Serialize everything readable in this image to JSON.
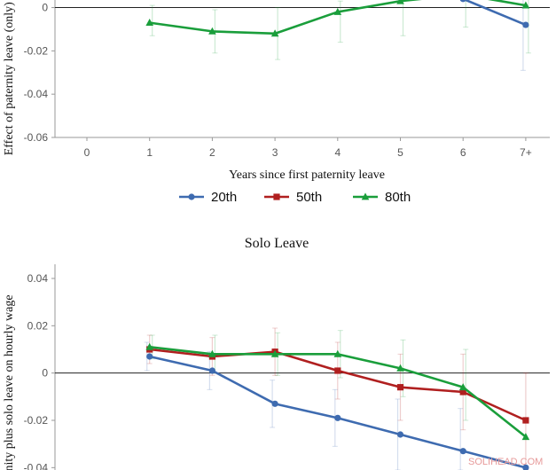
{
  "watermark": "SOLIHEAD.COM",
  "legend": [
    {
      "label": "20th",
      "color": "#3e6bb0",
      "marker": "circle"
    },
    {
      "label": "50th",
      "color": "#b01f1f",
      "marker": "square"
    },
    {
      "label": "80th",
      "color": "#1a9e3b",
      "marker": "triangle"
    }
  ],
  "chart_data": [
    {
      "type": "line",
      "title": "",
      "xlabel": "Years since first paternity leave",
      "ylabel": "Effect of paternity leave (only) on",
      "categories": [
        "0",
        "1",
        "2",
        "3",
        "4",
        "5",
        "6",
        "7+"
      ],
      "y_ticks": [
        0,
        -0.02,
        -0.04,
        -0.06
      ],
      "y_tick_labels": [
        "0",
        "-0.02",
        "-0.04",
        "-0.06"
      ],
      "ylim": [
        -0.06,
        0.0035
      ],
      "grid": false,
      "legend_position": "bottom",
      "series": [
        {
          "name": "20th",
          "color": "#3e6bb0",
          "marker": "circle",
          "points": [
            {
              "x": 6,
              "y": 0.004
            },
            {
              "x": 7,
              "y": -0.008
            }
          ],
          "ci": [
            {
              "x": 7,
              "lo": -0.029,
              "hi": 0.004
            }
          ]
        },
        {
          "name": "50th",
          "color": "#b01f1f",
          "marker": "square",
          "points": [],
          "ci": []
        },
        {
          "name": "80th",
          "color": "#1a9e3b",
          "marker": "triangle",
          "points": [
            {
              "x": 1,
              "y": -0.007
            },
            {
              "x": 2,
              "y": -0.011
            },
            {
              "x": 3,
              "y": -0.012
            },
            {
              "x": 4,
              "y": -0.002
            },
            {
              "x": 5,
              "y": 0.003
            },
            {
              "x": 6,
              "y": 0.006
            },
            {
              "x": 7,
              "y": 0.001
            }
          ],
          "ci": [
            {
              "x": 1,
              "lo": -0.013,
              "hi": 0.001
            },
            {
              "x": 2,
              "lo": -0.021,
              "hi": -0.001
            },
            {
              "x": 3,
              "lo": -0.024,
              "hi": 0.0
            },
            {
              "x": 4,
              "lo": -0.016,
              "hi": 0.003
            },
            {
              "x": 5,
              "lo": -0.013,
              "hi": 0.004
            },
            {
              "x": 6,
              "lo": -0.009,
              "hi": 0.004
            },
            {
              "x": 7,
              "lo": -0.021,
              "hi": 0.004
            }
          ]
        }
      ]
    },
    {
      "type": "line",
      "title": "Solo Leave",
      "xlabel": "",
      "ylabel": "nity plus solo leave on hourly wage",
      "categories": [
        "0",
        "1",
        "2",
        "3",
        "4",
        "5",
        "6",
        "7+"
      ],
      "y_ticks": [
        0.04,
        0.02,
        0,
        -0.02,
        -0.04
      ],
      "y_tick_labels": [
        "0.04",
        "0.02",
        "0",
        "-0.02",
        "-0.04"
      ],
      "ylim": [
        -0.041,
        0.046
      ],
      "grid": false,
      "series": [
        {
          "name": "20th",
          "color": "#3e6bb0",
          "marker": "circle",
          "points": [
            {
              "x": 1,
              "y": 0.007
            },
            {
              "x": 2,
              "y": 0.001
            },
            {
              "x": 3,
              "y": -0.013
            },
            {
              "x": 4,
              "y": -0.019
            },
            {
              "x": 5,
              "y": -0.026
            },
            {
              "x": 6,
              "y": -0.033
            },
            {
              "x": 7,
              "y": -0.04
            }
          ],
          "ci": [
            {
              "x": 1,
              "lo": 0.001,
              "hi": 0.013
            },
            {
              "x": 2,
              "lo": -0.007,
              "hi": 0.009
            },
            {
              "x": 3,
              "lo": -0.023,
              "hi": -0.003
            },
            {
              "x": 4,
              "lo": -0.031,
              "hi": -0.007
            },
            {
              "x": 5,
              "lo": -0.041,
              "hi": -0.011
            },
            {
              "x": 6,
              "lo": -0.041,
              "hi": -0.015
            }
          ]
        },
        {
          "name": "50th",
          "color": "#b01f1f",
          "marker": "square",
          "points": [
            {
              "x": 1,
              "y": 0.01
            },
            {
              "x": 2,
              "y": 0.007
            },
            {
              "x": 3,
              "y": 0.009
            },
            {
              "x": 4,
              "y": 0.001
            },
            {
              "x": 5,
              "y": -0.006
            },
            {
              "x": 6,
              "y": -0.008
            },
            {
              "x": 7,
              "y": -0.02
            }
          ],
          "ci": [
            {
              "x": 1,
              "lo": 0.004,
              "hi": 0.016
            },
            {
              "x": 2,
              "lo": -0.001,
              "hi": 0.015
            },
            {
              "x": 3,
              "lo": -0.001,
              "hi": 0.019
            },
            {
              "x": 4,
              "lo": -0.011,
              "hi": 0.013
            },
            {
              "x": 5,
              "lo": -0.02,
              "hi": 0.008
            },
            {
              "x": 6,
              "lo": -0.024,
              "hi": 0.008
            },
            {
              "x": 7,
              "lo": -0.041,
              "hi": 0.0
            }
          ]
        },
        {
          "name": "80th",
          "color": "#1a9e3b",
          "marker": "triangle",
          "points": [
            {
              "x": 1,
              "y": 0.011
            },
            {
              "x": 2,
              "y": 0.008
            },
            {
              "x": 3,
              "y": 0.008
            },
            {
              "x": 4,
              "y": 0.008
            },
            {
              "x": 5,
              "y": 0.002
            },
            {
              "x": 6,
              "y": -0.006
            },
            {
              "x": 7,
              "y": -0.027
            }
          ],
          "ci": [
            {
              "x": 1,
              "lo": 0.006,
              "hi": 0.016
            },
            {
              "x": 2,
              "lo": 0.0,
              "hi": 0.016
            },
            {
              "x": 3,
              "lo": -0.001,
              "hi": 0.017
            },
            {
              "x": 4,
              "lo": -0.002,
              "hi": 0.018
            },
            {
              "x": 5,
              "lo": -0.01,
              "hi": 0.014
            },
            {
              "x": 6,
              "lo": -0.02,
              "hi": 0.01
            }
          ]
        }
      ]
    }
  ]
}
